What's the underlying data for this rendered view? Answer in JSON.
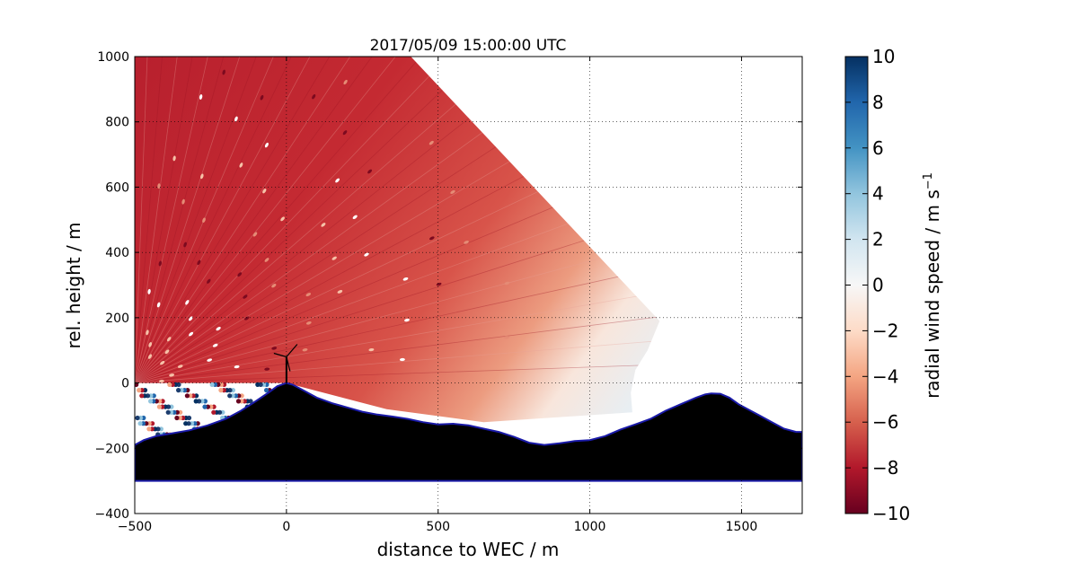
{
  "chart_data": {
    "type": "heatmap",
    "title": "2017/05/09 15:00:00 UTC",
    "xlabel": "distance to WEC / m",
    "ylabel": "rel. height / m",
    "xlim": [
      -500,
      1700
    ],
    "ylim": [
      -400,
      1000
    ],
    "xticks": [
      -500,
      0,
      500,
      1000,
      1500
    ],
    "yticks": [
      -400,
      -200,
      0,
      200,
      400,
      600,
      800,
      1000
    ],
    "xtick_labels": [
      "−500",
      "0",
      "500",
      "1000",
      "1500"
    ],
    "ytick_labels": [
      "−400",
      "−200",
      "0",
      "200",
      "400",
      "600",
      "800",
      "1000"
    ],
    "grid": true,
    "colorbar": {
      "label": "radial wind speed / m s",
      "label_superscript": "−1",
      "range": [
        -10,
        10
      ],
      "ticks": [
        10,
        8,
        6,
        4,
        2,
        0,
        -2,
        -4,
        -6,
        -8,
        -10
      ],
      "tick_labels": [
        "10",
        "8",
        "6",
        "4",
        "2",
        "0",
        "−2",
        "−4",
        "−6",
        "−8",
        "−10"
      ],
      "colormap": "RdBu",
      "colors": [
        "#67001f",
        "#b2182b",
        "#d6604d",
        "#f4a582",
        "#fddbc7",
        "#f7f7f7",
        "#d1e5f0",
        "#92c5de",
        "#4393c3",
        "#2166ac",
        "#053061"
      ]
    },
    "scan_sector": {
      "origin": [
        -500,
        0
      ],
      "outer_boundary": [
        [
          -500,
          1000
        ],
        [
          -100,
          1000
        ],
        [
          120,
          1000
        ],
        [
          410,
          1000
        ],
        [
          1230,
          190
        ],
        [
          1190,
          100
        ],
        [
          1150,
          40
        ],
        [
          1135,
          -30
        ],
        [
          1140,
          -90
        ],
        [
          650,
          -120
        ],
        [
          330,
          -80
        ],
        [
          0,
          0
        ],
        [
          -500,
          0
        ]
      ],
      "dominant_speed": -8,
      "near_surface_speed": 0
    },
    "terrain_profile": {
      "x": [
        -500,
        -470,
        -430,
        -380,
        -320,
        -260,
        -200,
        -150,
        -100,
        -60,
        -30,
        0,
        20,
        50,
        100,
        150,
        200,
        250,
        300,
        350,
        400,
        450,
        500,
        550,
        600,
        650,
        700,
        750,
        800,
        850,
        900,
        950,
        1000,
        1050,
        1100,
        1150,
        1200,
        1250,
        1300,
        1350,
        1380,
        1400,
        1430,
        1460,
        1490,
        1530,
        1560,
        1600,
        1640,
        1680,
        1700
      ],
      "height": [
        -190,
        -175,
        -163,
        -155,
        -145,
        -130,
        -110,
        -85,
        -55,
        -30,
        -10,
        0,
        -5,
        -20,
        -45,
        -62,
        -75,
        -88,
        -97,
        -103,
        -110,
        -120,
        -127,
        -125,
        -130,
        -140,
        -150,
        -165,
        -183,
        -190,
        -185,
        -178,
        -175,
        -163,
        -143,
        -127,
        -110,
        -85,
        -65,
        -45,
        -35,
        -32,
        -33,
        -45,
        -65,
        -85,
        -100,
        -120,
        -140,
        -150,
        -150
      ],
      "base": -300
    },
    "turbine": {
      "x": 0,
      "hub_height": 80
    }
  }
}
